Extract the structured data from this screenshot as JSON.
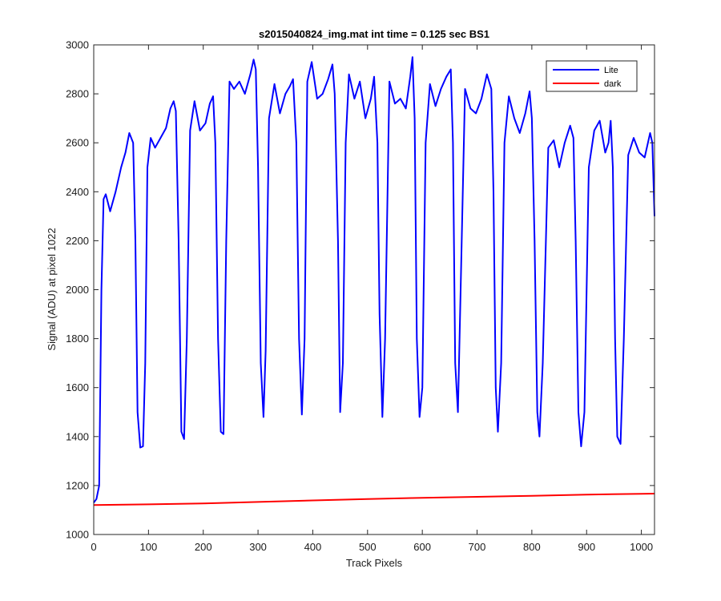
{
  "chart_data": {
    "type": "line",
    "title": "s2015040824_img.mat int time = 0.125 sec   BS1",
    "xlabel": "Track Pixels",
    "ylabel": "Signal (ADU) at pixel 1022",
    "xlim": [
      0,
      1024
    ],
    "ylim": [
      1000,
      3000
    ],
    "xticks": [
      0,
      100,
      200,
      300,
      400,
      500,
      600,
      700,
      800,
      900,
      1000
    ],
    "yticks": [
      1000,
      1200,
      1400,
      1600,
      1800,
      2000,
      2200,
      2400,
      2600,
      2800,
      3000
    ],
    "grid": false,
    "legend_position": "top-right",
    "series": [
      {
        "name": "Lite",
        "color": "#0000ff",
        "x": [
          0,
          5,
          10,
          14,
          18,
          22,
          30,
          40,
          50,
          58,
          65,
          72,
          76,
          80,
          85,
          90,
          94,
          98,
          104,
          112,
          122,
          132,
          140,
          146,
          150,
          155,
          160,
          165,
          170,
          176,
          184,
          194,
          204,
          212,
          218,
          222,
          227,
          232,
          237,
          242,
          248,
          256,
          266,
          276,
          286,
          292,
          296,
          300,
          305,
          310,
          314,
          320,
          330,
          340,
          350,
          358,
          364,
          370,
          375,
          380,
          385,
          390,
          398,
          408,
          418,
          428,
          436,
          440,
          446,
          450,
          455,
          460,
          466,
          476,
          486,
          496,
          506,
          512,
          518,
          522,
          527,
          532,
          540,
          550,
          560,
          570,
          578,
          582,
          586,
          590,
          595,
          600,
          606,
          614,
          624,
          634,
          644,
          652,
          656,
          660,
          665,
          670,
          678,
          688,
          698,
          708,
          718,
          726,
          730,
          734,
          738,
          744,
          750,
          758,
          768,
          778,
          788,
          796,
          800,
          805,
          810,
          814,
          820,
          830,
          840,
          850,
          860,
          870,
          876,
          880,
          885,
          890,
          896,
          904,
          914,
          924,
          934,
          940,
          944,
          948,
          952,
          956,
          962,
          968,
          976,
          986,
          996,
          1006,
          1012,
          1016,
          1020,
          1024
        ],
        "values": [
          1130,
          1145,
          1200,
          2000,
          2370,
          2390,
          2320,
          2400,
          2500,
          2560,
          2640,
          2600,
          2200,
          1500,
          1355,
          1360,
          1700,
          2500,
          2620,
          2580,
          2620,
          2660,
          2740,
          2770,
          2730,
          2200,
          1420,
          1390,
          1800,
          2650,
          2770,
          2650,
          2680,
          2760,
          2790,
          2600,
          1800,
          1420,
          1410,
          2200,
          2850,
          2820,
          2850,
          2800,
          2880,
          2940,
          2900,
          2500,
          1700,
          1480,
          1750,
          2700,
          2840,
          2720,
          2800,
          2830,
          2860,
          2600,
          1800,
          1490,
          1800,
          2850,
          2930,
          2780,
          2800,
          2860,
          2920,
          2800,
          2200,
          1500,
          1700,
          2600,
          2880,
          2780,
          2850,
          2700,
          2780,
          2870,
          2600,
          1900,
          1480,
          1800,
          2850,
          2760,
          2780,
          2740,
          2870,
          2950,
          2700,
          1800,
          1480,
          1600,
          2600,
          2840,
          2750,
          2820,
          2870,
          2900,
          2600,
          1700,
          1500,
          2000,
          2820,
          2740,
          2720,
          2780,
          2880,
          2820,
          2400,
          1600,
          1420,
          1700,
          2600,
          2790,
          2700,
          2640,
          2720,
          2810,
          2700,
          2200,
          1500,
          1400,
          1700,
          2580,
          2610,
          2500,
          2600,
          2670,
          2620,
          2200,
          1500,
          1360,
          1500,
          2500,
          2650,
          2690,
          2560,
          2600,
          2690,
          2500,
          1800,
          1400,
          1370,
          1800,
          2550,
          2620,
          2560,
          2540,
          2600,
          2640,
          2600,
          2300
        ]
      },
      {
        "name": "dark",
        "color": "#ff0000",
        "x": [
          0,
          100,
          200,
          300,
          400,
          500,
          600,
          700,
          800,
          900,
          1000,
          1024
        ],
        "values": [
          1120,
          1123,
          1127,
          1133,
          1139,
          1145,
          1150,
          1154,
          1158,
          1163,
          1166,
          1167
        ]
      }
    ]
  }
}
